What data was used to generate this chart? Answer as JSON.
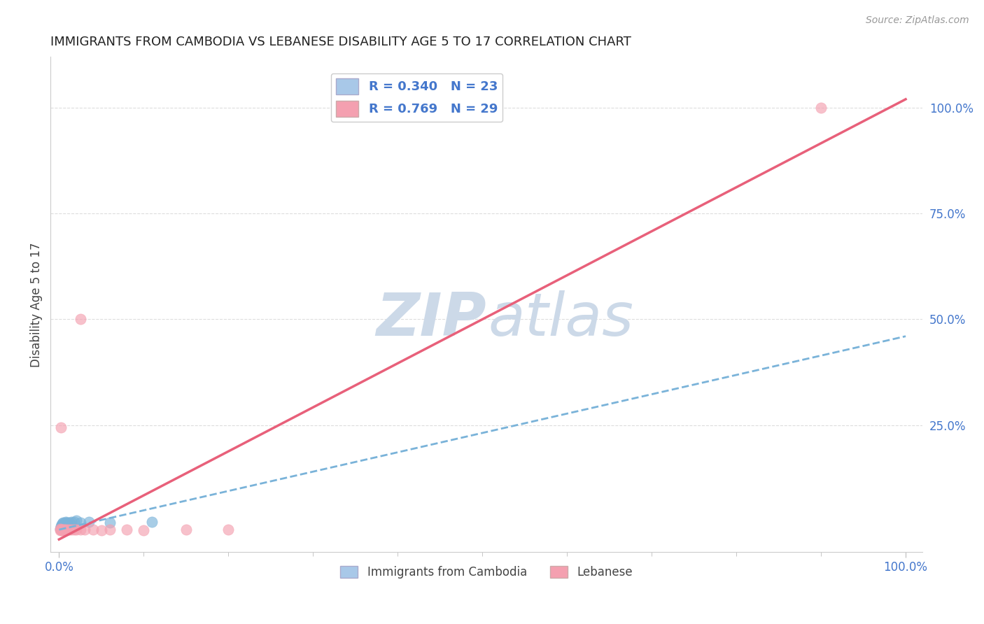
{
  "title": "IMMIGRANTS FROM CAMBODIA VS LEBANESE DISABILITY AGE 5 TO 17 CORRELATION CHART",
  "source": "Source: ZipAtlas.com",
  "ylabel": "Disability Age 5 to 17",
  "bottom_legend": [
    "Immigrants from Cambodia",
    "Lebanese"
  ],
  "cambodia_color": "#7ab3d9",
  "lebanese_color": "#f4a0b0",
  "cambodia_line_color": "#7ab3d9",
  "lebanese_line_color": "#e8607a",
  "watermark_color": "#ccd9e8",
  "grid_color": "#dddddd",
  "background_color": "#ffffff",
  "title_color": "#222222",
  "axis_color": "#4477cc",
  "legend_box_color": "#a8c8e8",
  "legend_pink_color": "#f4a0b0",
  "cambodia_r": "0.340",
  "cambodia_n": "23",
  "lebanese_r": "0.769",
  "lebanese_n": "29",
  "cam_line_x0": 0.0,
  "cam_line_y0": 0.003,
  "cam_line_x1": 1.0,
  "cam_line_y1": 0.46,
  "leb_line_x0": 0.0,
  "leb_line_y0": -0.02,
  "leb_line_x1": 1.0,
  "leb_line_y1": 1.02,
  "cambodia_points": [
    [
      0.001,
      0.005
    ],
    [
      0.002,
      0.008
    ],
    [
      0.002,
      0.012
    ],
    [
      0.003,
      0.01
    ],
    [
      0.003,
      0.015
    ],
    [
      0.004,
      0.01
    ],
    [
      0.004,
      0.018
    ],
    [
      0.005,
      0.012
    ],
    [
      0.005,
      0.02
    ],
    [
      0.006,
      0.015
    ],
    [
      0.007,
      0.018
    ],
    [
      0.008,
      0.015
    ],
    [
      0.008,
      0.022
    ],
    [
      0.009,
      0.02
    ],
    [
      0.01,
      0.018
    ],
    [
      0.012,
      0.02
    ],
    [
      0.015,
      0.022
    ],
    [
      0.018,
      0.022
    ],
    [
      0.02,
      0.025
    ],
    [
      0.025,
      0.02
    ],
    [
      0.035,
      0.022
    ],
    [
      0.06,
      0.02
    ],
    [
      0.11,
      0.022
    ]
  ],
  "lebanese_points": [
    [
      0.001,
      0.002
    ],
    [
      0.001,
      0.005
    ],
    [
      0.002,
      0.003
    ],
    [
      0.002,
      0.004
    ],
    [
      0.003,
      0.002
    ],
    [
      0.003,
      0.003
    ],
    [
      0.004,
      0.003
    ],
    [
      0.005,
      0.002
    ],
    [
      0.005,
      0.004
    ],
    [
      0.006,
      0.003
    ],
    [
      0.007,
      0.003
    ],
    [
      0.008,
      0.002
    ],
    [
      0.01,
      0.003
    ],
    [
      0.012,
      0.003
    ],
    [
      0.015,
      0.003
    ],
    [
      0.018,
      0.003
    ],
    [
      0.02,
      0.003
    ],
    [
      0.025,
      0.003
    ],
    [
      0.03,
      0.003
    ],
    [
      0.04,
      0.003
    ],
    [
      0.05,
      0.002
    ],
    [
      0.06,
      0.003
    ],
    [
      0.08,
      0.003
    ],
    [
      0.1,
      0.002
    ],
    [
      0.15,
      0.003
    ],
    [
      0.2,
      0.003
    ],
    [
      0.002,
      0.245
    ],
    [
      0.025,
      0.5
    ],
    [
      0.9,
      1.0
    ]
  ],
  "xlim": [
    -0.01,
    1.02
  ],
  "ylim": [
    -0.05,
    1.12
  ]
}
